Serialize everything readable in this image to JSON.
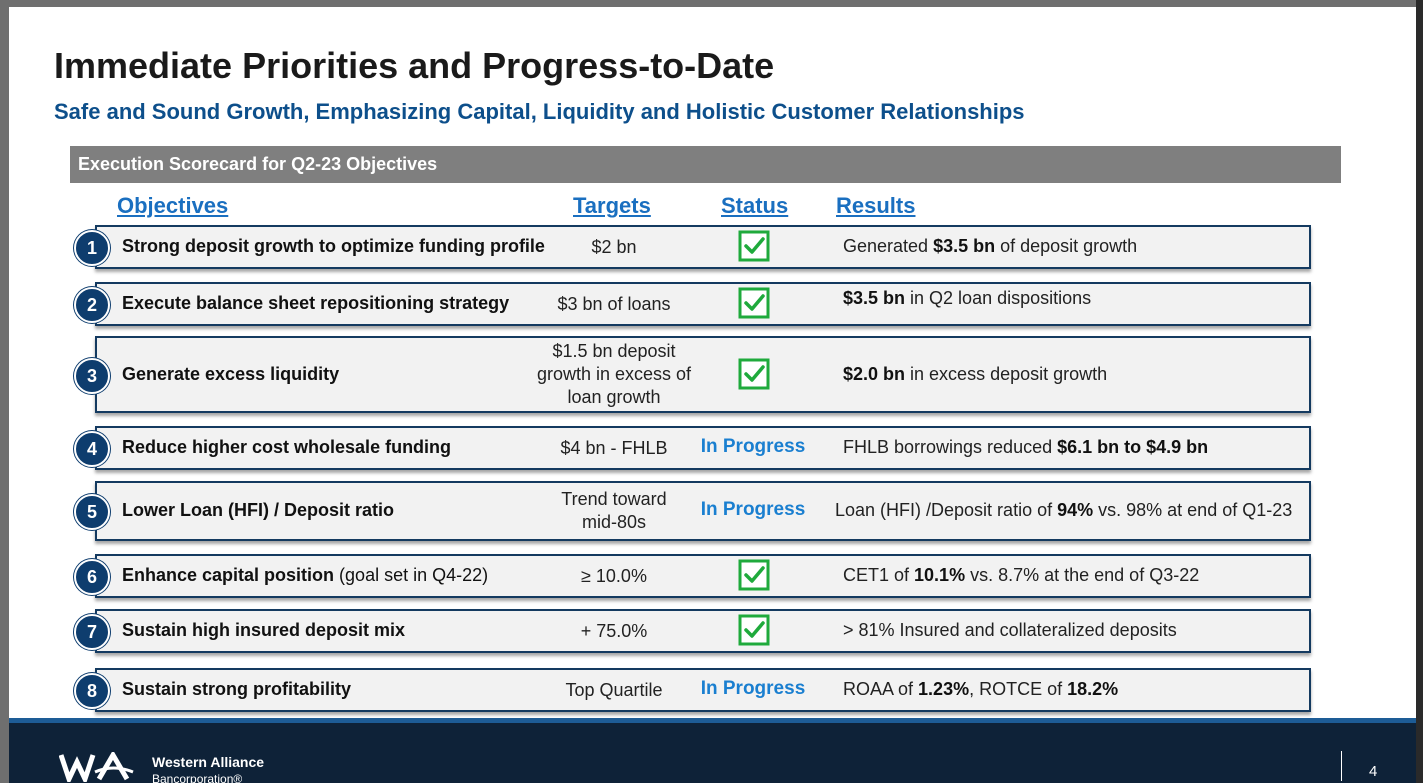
{
  "title": "Immediate Priorities and Progress-to-Date",
  "subtitle": "Safe and Sound Growth, Emphasizing Capital, Liquidity and Holistic Customer Relationships",
  "banner": "Execution Scorecard for Q2-23 Objectives",
  "columns": {
    "objectives": "Objectives",
    "targets": "Targets",
    "status": "Status",
    "results": "Results"
  },
  "rows": [
    {
      "num": "1",
      "objective": "Strong deposit growth to optimize funding profile",
      "objective_note": "",
      "target_lines": [
        "$2 bn"
      ],
      "status": "complete",
      "status_text": "",
      "result": [
        {
          "text": "Generated ",
          "bold": false
        },
        {
          "text": "$3.5 bn",
          "bold": true
        },
        {
          "text": " of deposit growth",
          "bold": false
        }
      ]
    },
    {
      "num": "2",
      "objective": "Execute balance sheet repositioning strategy",
      "objective_note": "",
      "target_lines": [
        "$3 bn of loans"
      ],
      "status": "complete",
      "status_text": "",
      "result": [
        {
          "text": "$3.5 bn",
          "bold": true
        },
        {
          "text": " in Q2 loan dispositions",
          "bold": false
        }
      ]
    },
    {
      "num": "3",
      "objective": "Generate excess liquidity",
      "objective_note": "",
      "target_lines": [
        "$1.5 bn deposit",
        "growth in excess of",
        "loan growth"
      ],
      "status": "complete",
      "status_text": "",
      "result": [
        {
          "text": "$2.0 bn",
          "bold": true
        },
        {
          "text": " in excess deposit growth",
          "bold": false
        }
      ]
    },
    {
      "num": "4",
      "objective": "Reduce higher cost wholesale funding",
      "objective_note": "",
      "target_lines": [
        "$4 bn - FHLB"
      ],
      "status": "progress",
      "status_text": "In Progress",
      "result": [
        {
          "text": "FHLB borrowings reduced ",
          "bold": false
        },
        {
          "text": "$6.1 bn to $4.9 bn",
          "bold": true
        }
      ]
    },
    {
      "num": "5",
      "objective": "Lower Loan (HFI) / Deposit ratio",
      "objective_note": "",
      "target_lines": [
        "Trend toward",
        "mid-80s"
      ],
      "status": "progress",
      "status_text": "In Progress",
      "result": [
        {
          "text": "Loan (HFI) /Deposit ratio of ",
          "bold": false
        },
        {
          "text": "94%",
          "bold": true
        },
        {
          "text": " vs. 98% at end of Q1-23",
          "bold": false
        }
      ]
    },
    {
      "num": "6",
      "objective": "Enhance capital position",
      "objective_note": " (goal set in Q4-22)",
      "target_lines": [
        "≥ 10.0%"
      ],
      "status": "complete",
      "status_text": "",
      "result": [
        {
          "text": "CET1 of ",
          "bold": false
        },
        {
          "text": "10.1%",
          "bold": true
        },
        {
          "text": " vs. 8.7% at the end of Q3-22",
          "bold": false
        }
      ]
    },
    {
      "num": "7",
      "objective": "Sustain high insured deposit mix",
      "objective_note": "",
      "target_lines": [
        "+ 75.0%"
      ],
      "status": "complete",
      "status_text": "",
      "result": [
        {
          "text": "> 81% Insured and collateralized deposits",
          "bold": false
        }
      ]
    },
    {
      "num": "8",
      "objective": "Sustain strong profitability",
      "objective_note": "",
      "target_lines": [
        "Top Quartile"
      ],
      "status": "progress",
      "status_text": "In Progress",
      "result": [
        {
          "text": "ROAA of ",
          "bold": false
        },
        {
          "text": "1.23%",
          "bold": true
        },
        {
          "text": ", ROTCE of ",
          "bold": false
        },
        {
          "text": "18.2%",
          "bold": true
        }
      ]
    }
  ],
  "footer": {
    "logo_icon": "western-alliance-wa-logo",
    "brand_line1": "Western Alliance",
    "brand_line2": "Bancorporation®",
    "page_number": "4"
  },
  "colors": {
    "title": "#1a1a1a",
    "subtitle": "#0d4f8b",
    "banner": "#7f7f7f",
    "column_header": "#1a6fc0",
    "row_border": "#143a60",
    "number_circle": "#0e3d6e",
    "check_green": "#1faa3c",
    "in_progress": "#1a7fd0",
    "footer": "#0e2238"
  }
}
